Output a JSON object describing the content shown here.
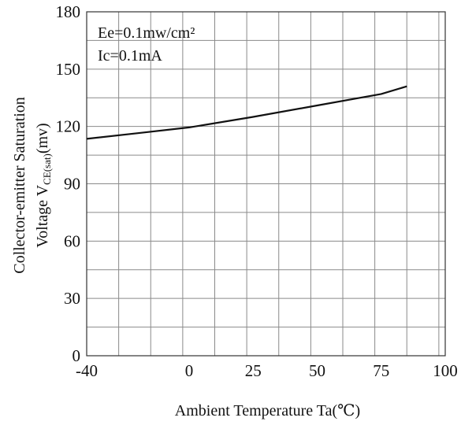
{
  "chart_data": {
    "type": "line",
    "title": "",
    "xlabel": "Ambient Temperature Ta(℃)",
    "ylabel_line1": "Collector-emitter Saturation",
    "ylabel_line2_prefix": "Voltage V",
    "ylabel_line2_sub": "CE(sat)",
    "ylabel_line2_suffix": "(mv)",
    "xlim": [
      -40,
      100
    ],
    "ylim": [
      0,
      180
    ],
    "x_ticks": [
      -40,
      0,
      25,
      50,
      75,
      100
    ],
    "y_ticks": [
      0,
      30,
      60,
      90,
      120,
      150,
      180
    ],
    "x_grid_step": 12.5,
    "y_grid_step": 15,
    "grid": true,
    "legend": "none",
    "annotations": [
      "Ee=0.1mw/cm²",
      "Ic=0.1mA"
    ],
    "series": [
      {
        "x": [
          -40,
          -20,
          0,
          25,
          50,
          75,
          85
        ],
        "y": [
          113.5,
          116.5,
          119.5,
          125,
          131,
          137,
          141
        ]
      }
    ]
  }
}
